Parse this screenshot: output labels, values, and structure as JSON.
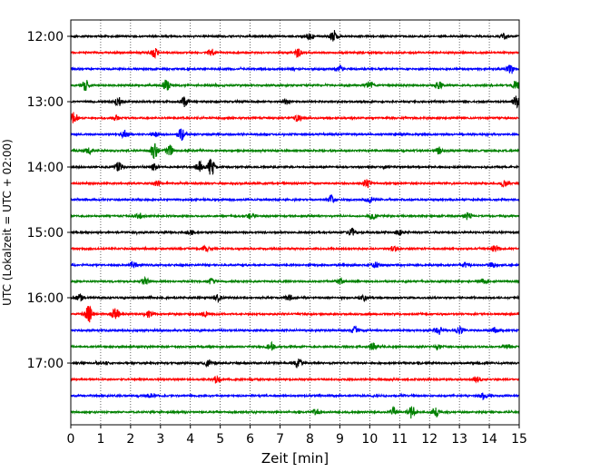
{
  "chart_data": {
    "type": "line",
    "title": "",
    "xlabel": "Zeit  [min]",
    "ylabel": "UTC (Lokalzeit = UTC + 02:00)",
    "xlim": [
      0,
      15
    ],
    "x_ticks": [
      "0",
      "1",
      "2",
      "3",
      "4",
      "5",
      "6",
      "7",
      "8",
      "9",
      "10",
      "11",
      "12",
      "13",
      "14",
      "15"
    ],
    "y_tick_labels": [
      "12:00",
      "13:00",
      "14:00",
      "15:00",
      "16:00",
      "17:00"
    ],
    "grid": "vertical dotted lines at each minute",
    "trace_interval_minutes": 15,
    "trace_colors": [
      "#000000",
      "#ff0000",
      "#0000ff",
      "#008000"
    ],
    "traces": [
      {
        "start": "11:45",
        "color": "#000000",
        "events": [
          [
            8.8,
            3.2
          ],
          [
            8.0,
            1.6
          ],
          [
            14.5,
            1.4
          ]
        ]
      },
      {
        "start": "12:00",
        "color": "#ff0000",
        "events": [
          [
            2.8,
            2.2
          ],
          [
            4.7,
            1.5
          ],
          [
            7.6,
            1.8
          ]
        ]
      },
      {
        "start": "12:15",
        "color": "#0000ff",
        "events": [
          [
            14.7,
            2.0
          ],
          [
            9.0,
            1.3
          ]
        ]
      },
      {
        "start": "12:30",
        "color": "#008000",
        "events": [
          [
            0.5,
            2.6
          ],
          [
            3.2,
            2.8
          ],
          [
            10.0,
            2.0
          ],
          [
            12.3,
            2.0
          ],
          [
            14.9,
            2.4
          ]
        ]
      },
      {
        "start": "12:45",
        "color": "#000000",
        "events": [
          [
            1.6,
            2.0
          ],
          [
            3.8,
            2.4
          ],
          [
            7.2,
            1.6
          ],
          [
            14.9,
            2.6
          ]
        ]
      },
      {
        "start": "13:00",
        "color": "#ff0000",
        "events": [
          [
            0.1,
            3.0
          ],
          [
            7.6,
            1.6
          ],
          [
            1.5,
            1.2
          ]
        ]
      },
      {
        "start": "13:15",
        "color": "#0000ff",
        "events": [
          [
            1.8,
            1.8
          ],
          [
            3.7,
            3.2
          ],
          [
            2.8,
            1.4
          ]
        ]
      },
      {
        "start": "13:30",
        "color": "#008000",
        "events": [
          [
            2.8,
            4.0
          ],
          [
            3.3,
            2.4
          ],
          [
            0.6,
            1.5
          ],
          [
            12.3,
            1.8
          ]
        ]
      },
      {
        "start": "13:45",
        "color": "#000000",
        "events": [
          [
            1.6,
            2.4
          ],
          [
            4.3,
            2.2
          ],
          [
            4.7,
            4.2
          ],
          [
            2.8,
            1.6
          ]
        ]
      },
      {
        "start": "14:00",
        "color": "#ff0000",
        "events": [
          [
            9.9,
            2.2
          ],
          [
            14.5,
            1.6
          ],
          [
            2.9,
            1.3
          ]
        ]
      },
      {
        "start": "14:15",
        "color": "#0000ff",
        "events": [
          [
            8.7,
            2.0
          ],
          [
            10.0,
            1.3
          ]
        ]
      },
      {
        "start": "14:30",
        "color": "#008000",
        "events": [
          [
            2.3,
            1.3
          ],
          [
            6.0,
            1.2
          ],
          [
            10.1,
            1.4
          ],
          [
            13.3,
            1.4
          ]
        ]
      },
      {
        "start": "14:45",
        "color": "#000000",
        "events": [
          [
            9.4,
            2.0
          ],
          [
            4.0,
            1.2
          ],
          [
            11.0,
            1.2
          ]
        ]
      },
      {
        "start": "15:00",
        "color": "#ff0000",
        "events": [
          [
            14.2,
            1.6
          ],
          [
            10.8,
            1.3
          ],
          [
            4.5,
            1.2
          ]
        ]
      },
      {
        "start": "15:15",
        "color": "#0000ff",
        "events": [
          [
            2.1,
            1.6
          ],
          [
            10.2,
            1.3
          ],
          [
            13.2,
            1.3
          ],
          [
            14.1,
            1.2
          ]
        ]
      },
      {
        "start": "15:30",
        "color": "#008000",
        "events": [
          [
            2.5,
            1.4
          ],
          [
            4.7,
            1.3
          ],
          [
            9.0,
            1.2
          ],
          [
            13.8,
            1.2
          ]
        ]
      },
      {
        "start": "15:45",
        "color": "#000000",
        "events": [
          [
            0.3,
            1.6
          ],
          [
            4.9,
            1.8
          ],
          [
            9.8,
            1.6
          ],
          [
            7.3,
            1.3
          ]
        ]
      },
      {
        "start": "16:00",
        "color": "#ff0000",
        "events": [
          [
            0.6,
            4.2
          ],
          [
            1.5,
            3.6
          ],
          [
            2.6,
            1.6
          ],
          [
            4.5,
            1.2
          ]
        ]
      },
      {
        "start": "16:15",
        "color": "#0000ff",
        "events": [
          [
            9.5,
            1.6
          ],
          [
            12.3,
            2.0
          ],
          [
            13.0,
            2.0
          ],
          [
            14.2,
            1.3
          ]
        ]
      },
      {
        "start": "16:30",
        "color": "#008000",
        "events": [
          [
            6.7,
            2.0
          ],
          [
            10.1,
            1.6
          ],
          [
            12.3,
            1.2
          ],
          [
            14.6,
            1.2
          ]
        ]
      },
      {
        "start": "16:45",
        "color": "#000000",
        "events": [
          [
            4.6,
            1.8
          ],
          [
            7.6,
            2.4
          ],
          [
            1.1,
            1.2
          ]
        ]
      },
      {
        "start": "17:00",
        "color": "#ff0000",
        "events": [
          [
            4.9,
            1.6
          ],
          [
            13.6,
            1.2
          ]
        ]
      },
      {
        "start": "17:15",
        "color": "#0000ff",
        "events": [
          [
            13.8,
            1.4
          ],
          [
            2.7,
            1.1
          ]
        ]
      },
      {
        "start": "17:30",
        "color": "#008000",
        "events": [
          [
            11.4,
            3.2
          ],
          [
            10.8,
            2.2
          ],
          [
            12.2,
            2.0
          ],
          [
            8.2,
            1.4
          ]
        ]
      }
    ]
  }
}
